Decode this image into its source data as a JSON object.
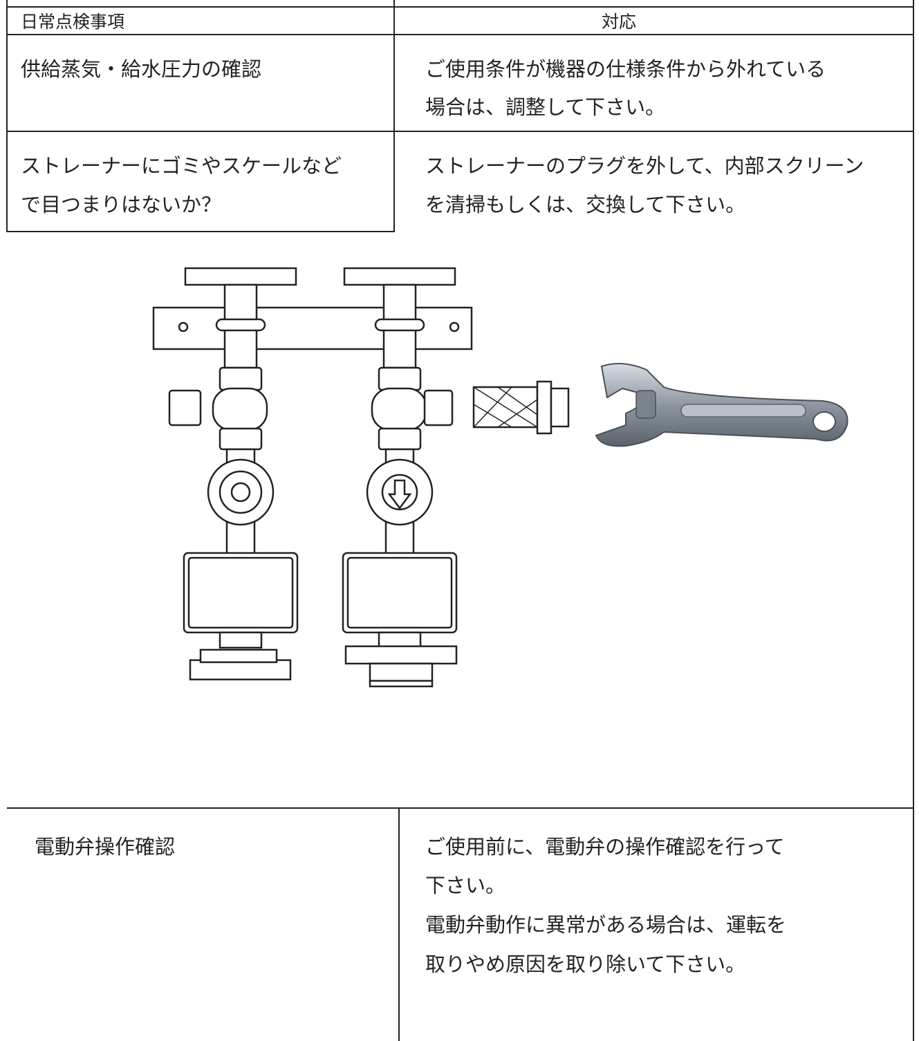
{
  "table": {
    "header": [
      "日常点検事項",
      "対応"
    ],
    "rows": [
      {
        "item": [
          "供給蒸気・給水圧力の確認"
        ],
        "action": [
          "ご使用条件が機器の仕様条件から外れている",
          "場合は、調整して下さい。"
        ]
      },
      {
        "item": [
          "ストレーナーにゴミやスケールなど",
          "で目つまりはないか？"
        ],
        "action": [
          "ストレーナーのプラグを外して、内部スクリーン",
          "を清掃もしくは、交換して下さい。"
        ]
      },
      {
        "item": [
          "電動弁操作確認"
        ],
        "action": [
          "ご使用前に、電動弁の操作確認を行って",
          "下さい。",
          "電動弁動作に異常がある場合は、運転を",
          "取りやめ原因を取り除いて下さい。"
        ]
      }
    ]
  }
}
